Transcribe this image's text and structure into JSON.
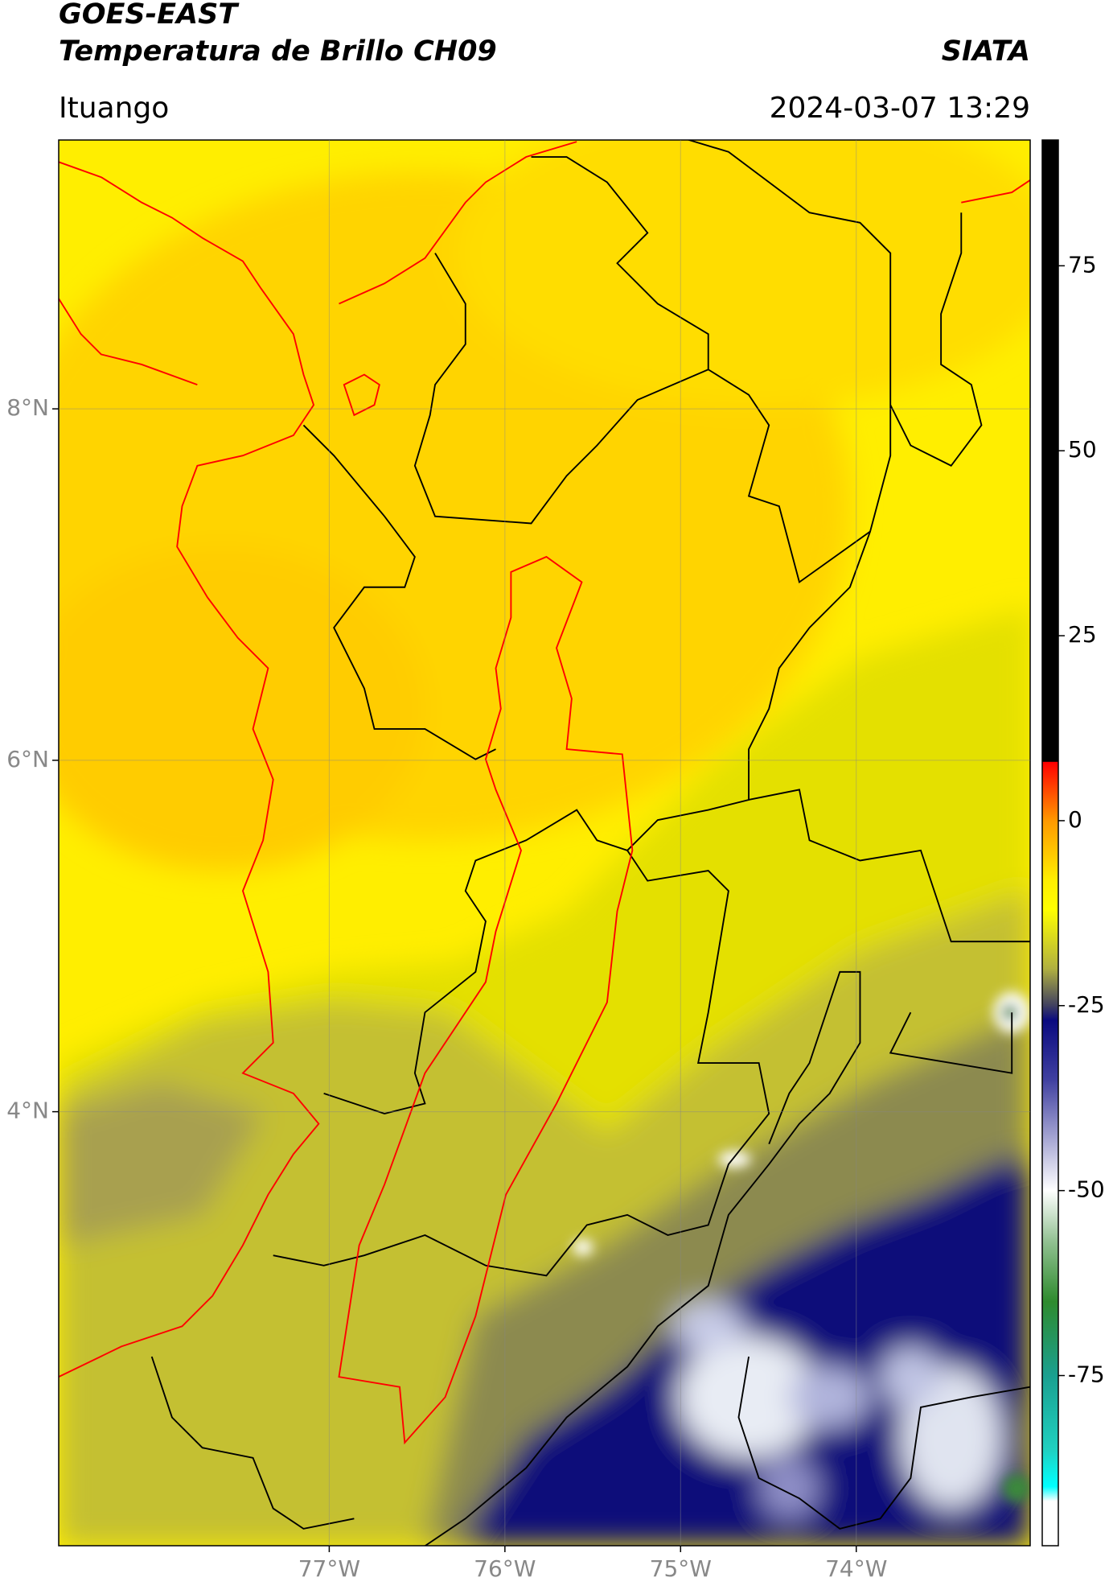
{
  "header": {
    "source": "GOES-EAST",
    "title": "Temperatura de Brillo CH09",
    "agency": "SIATA",
    "region": "Ituango",
    "datetime": "2024-03-07 13:29"
  },
  "map": {
    "lon_lim": [
      -78.54,
      -73.01
    ],
    "lat_lim": [
      1.53,
      9.53
    ],
    "grid": true,
    "lon_ticks": [
      {
        "value": -77,
        "label": "77°W"
      },
      {
        "value": -76,
        "label": "76°W"
      },
      {
        "value": -75,
        "label": "75°W"
      },
      {
        "value": -74,
        "label": "74°W"
      }
    ],
    "lat_ticks": [
      {
        "value": 8,
        "label": "8°N"
      },
      {
        "value": 6,
        "label": "6°N"
      },
      {
        "value": 4,
        "label": "4°N"
      }
    ]
  },
  "colorbar": {
    "lim": [
      -98,
      92
    ],
    "ticks": [
      75,
      50,
      25,
      0,
      -25,
      -50,
      -75
    ],
    "stops": [
      {
        "value": 92,
        "color": "#000000"
      },
      {
        "value": 8,
        "color": "#000000"
      },
      {
        "value": 7.9,
        "color": "#ff0000"
      },
      {
        "value": 0,
        "color": "#ff9900"
      },
      {
        "value": -8,
        "color": "#ffee00"
      },
      {
        "value": -12,
        "color": "#ffff00"
      },
      {
        "value": -20,
        "color": "#b0b040"
      },
      {
        "value": -25,
        "color": "#404060"
      },
      {
        "value": -27,
        "color": "#0a0a80"
      },
      {
        "value": -35,
        "color": "#4040a0"
      },
      {
        "value": -45,
        "color": "#c0c0e0"
      },
      {
        "value": -50,
        "color": "#ffffff"
      },
      {
        "value": -57,
        "color": "#90c090"
      },
      {
        "value": -65,
        "color": "#2e8b2e"
      },
      {
        "value": -75,
        "color": "#1aa090"
      },
      {
        "value": -85,
        "color": "#20d0c0"
      },
      {
        "value": -90,
        "color": "#00ffff"
      },
      {
        "value": -92,
        "color": "#ffffff"
      },
      {
        "value": -98,
        "color": "#ffffff"
      }
    ]
  }
}
